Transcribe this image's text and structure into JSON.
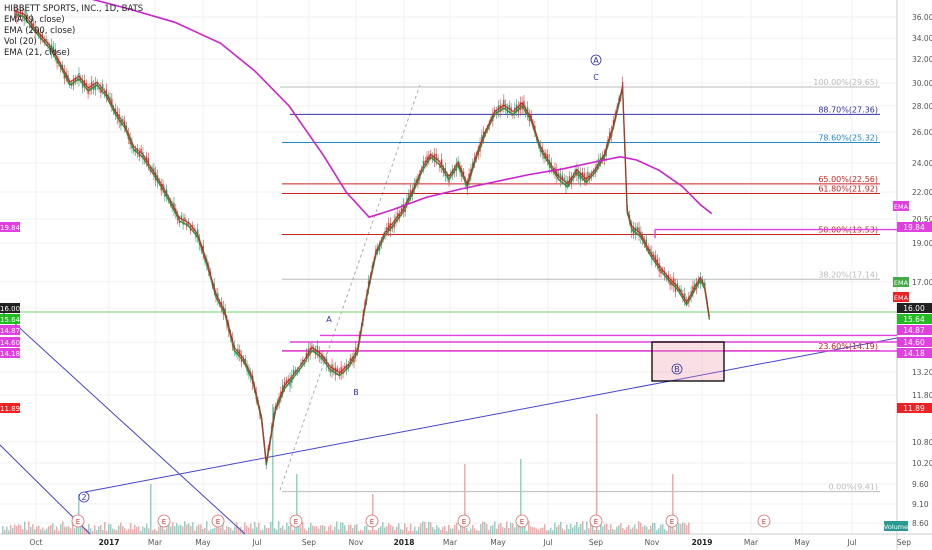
{
  "chart_data": {
    "type": "candlestick",
    "title": "HIBBETT SPORTS, INC., 1D, BATS",
    "indicators": [
      "EMA (9, close)",
      "EMA (200, close)",
      "Vol (20)",
      "EMA (21, close)"
    ],
    "y_ticks": [
      36.0,
      34.0,
      32.0,
      30.0,
      28.0,
      26.0,
      24.0,
      22.0,
      20.5,
      19.0,
      17.0,
      16.0,
      14.6,
      13.2,
      11.8,
      10.8,
      10.2,
      9.6,
      9.1,
      8.6
    ],
    "y_tick_labels": [
      "36.00",
      "34.00",
      "32.00",
      "30.00",
      "28.00",
      "26.00",
      "24.00",
      "22.00",
      "20.50",
      "19.00",
      "17.00",
      "16.00",
      "14.60",
      "13.20",
      "11.80",
      "10.80",
      "10.20",
      "9.60",
      "9.10",
      "8.60"
    ],
    "x_tick_labels": [
      "Oct",
      "2017",
      "Mar",
      "May",
      "Jul",
      "Sep",
      "Nov",
      "2018",
      "Mar",
      "May",
      "Jul",
      "Sep",
      "Nov",
      "2019",
      "Mar",
      "May",
      "Jul",
      "Sep"
    ],
    "price_badges": [
      {
        "label": "19.84",
        "price": 19.84,
        "color": "#e040e0"
      },
      {
        "label": "16.00",
        "price": 16.0,
        "color": "#222222"
      },
      {
        "label": "15.64",
        "price": 15.64,
        "color": "#22bb22"
      },
      {
        "label": "14.87",
        "price": 14.87,
        "color": "#e040e0"
      },
      {
        "label": "14.60",
        "price": 14.6,
        "color": "#e040e0"
      },
      {
        "label": "14.18",
        "price": 14.18,
        "color": "#e040e0"
      },
      {
        "label": "11.89",
        "price": 11.89,
        "color": "#ee2222"
      }
    ],
    "ema_badges": [
      {
        "label": "EMA",
        "price": 20.65,
        "color": "#e040e0"
      },
      {
        "label": "EMA",
        "price": 16.85,
        "color": "#44aa44"
      },
      {
        "label": "EMA",
        "price": 16.45,
        "color": "#ee2222"
      }
    ],
    "fib_levels": [
      {
        "label": "100.00%(29.65)",
        "price": 29.65,
        "color": "#bbbbbb"
      },
      {
        "label": "88.70%(27.36)",
        "price": 27.36,
        "color": "#3333aa"
      },
      {
        "label": "78.60%(25.32)",
        "price": 25.32,
        "color": "#2288cc"
      },
      {
        "label": "65.00%(22.56)",
        "price": 22.56,
        "color": "#cc2222"
      },
      {
        "label": "61.80%(21.92)",
        "price": 21.92,
        "color": "#cc2222"
      },
      {
        "label": "50.00%(19.53)",
        "price": 19.53,
        "color": "#cc2222"
      },
      {
        "label": "38.20%(17.14)",
        "price": 17.14,
        "color": "#bbbbbb"
      },
      {
        "label": "23.60%(14.19)",
        "price": 14.19,
        "color": "#cc2222"
      },
      {
        "label": "0.00%(9.41)",
        "price": 9.41,
        "color": "#bbbbbb"
      }
    ],
    "wave_labels": [
      "A",
      "B",
      "C",
      "A",
      "2",
      "B"
    ],
    "earnings_marker": "E",
    "volume_label": "Volume",
    "price_path": [
      [
        0.0,
        36.5
      ],
      [
        0.04,
        36.2
      ],
      [
        0.08,
        35.0
      ],
      [
        0.12,
        34.0
      ],
      [
        0.16,
        33.0
      ],
      [
        0.2,
        31.5
      ],
      [
        0.24,
        30.0
      ],
      [
        0.28,
        30.5
      ],
      [
        0.32,
        29.5
      ],
      [
        0.36,
        30.0
      ],
      [
        0.4,
        29.0
      ],
      [
        0.44,
        27.5
      ],
      [
        0.48,
        26.5
      ],
      [
        0.52,
        25.0
      ],
      [
        0.56,
        24.5
      ],
      [
        0.6,
        23.5
      ],
      [
        0.64,
        22.5
      ],
      [
        0.68,
        21.5
      ],
      [
        0.72,
        20.5
      ],
      [
        0.76,
        20.2
      ],
      [
        0.8,
        19.5
      ],
      [
        0.84,
        18.0
      ],
      [
        0.88,
        16.5
      ],
      [
        0.92,
        15.8
      ],
      [
        0.96,
        14.3
      ],
      [
        1.0,
        13.8
      ],
      [
        1.04,
        12.8
      ],
      [
        1.08,
        11.3
      ],
      [
        1.1,
        10.2
      ],
      [
        1.14,
        11.5
      ],
      [
        1.18,
        12.3
      ],
      [
        1.22,
        13.0
      ],
      [
        1.26,
        13.6
      ],
      [
        1.3,
        14.3
      ],
      [
        1.34,
        14.0
      ],
      [
        1.38,
        13.4
      ],
      [
        1.42,
        13.1
      ],
      [
        1.46,
        13.5
      ],
      [
        1.5,
        14.2
      ],
      [
        1.54,
        16.5
      ],
      [
        1.58,
        18.5
      ],
      [
        1.62,
        19.6
      ],
      [
        1.66,
        20.3
      ],
      [
        1.7,
        21.0
      ],
      [
        1.74,
        22.0
      ],
      [
        1.78,
        23.5
      ],
      [
        1.82,
        24.5
      ],
      [
        1.86,
        24.0
      ],
      [
        1.9,
        23.0
      ],
      [
        1.94,
        24.0
      ],
      [
        1.98,
        22.5
      ],
      [
        2.02,
        24.5
      ],
      [
        2.06,
        26.0
      ],
      [
        2.1,
        27.5
      ],
      [
        2.14,
        28.0
      ],
      [
        2.18,
        27.5
      ],
      [
        2.22,
        28.2
      ],
      [
        2.26,
        27.0
      ],
      [
        2.3,
        25.0
      ],
      [
        2.34,
        24.0
      ],
      [
        2.38,
        23.0
      ],
      [
        2.42,
        22.5
      ],
      [
        2.46,
        23.5
      ],
      [
        2.5,
        22.8
      ],
      [
        2.54,
        23.5
      ],
      [
        2.58,
        24.5
      ],
      [
        2.62,
        26.5
      ],
      [
        2.66,
        29.7
      ],
      [
        2.68,
        21.0
      ],
      [
        2.7,
        20.0
      ],
      [
        2.74,
        19.5
      ],
      [
        2.78,
        18.5
      ],
      [
        2.82,
        17.8
      ],
      [
        2.86,
        17.2
      ],
      [
        2.9,
        16.8
      ],
      [
        2.94,
        16.2
      ],
      [
        2.96,
        16.5
      ],
      [
        3.0,
        17.2
      ],
      [
        3.02,
        16.8
      ],
      [
        3.04,
        15.6
      ]
    ],
    "ema200_path": [
      [
        0.3,
        38.0
      ],
      [
        0.5,
        36.8
      ],
      [
        0.7,
        35.5
      ],
      [
        0.9,
        33.5
      ],
      [
        1.05,
        31.0
      ],
      [
        1.2,
        28.0
      ],
      [
        1.35,
        24.5
      ],
      [
        1.45,
        22.0
      ],
      [
        1.55,
        20.6
      ],
      [
        1.65,
        21.0
      ],
      [
        1.8,
        21.7
      ],
      [
        1.95,
        22.2
      ],
      [
        2.1,
        22.7
      ],
      [
        2.25,
        23.2
      ],
      [
        2.4,
        23.6
      ],
      [
        2.55,
        24.1
      ],
      [
        2.65,
        24.4
      ],
      [
        2.72,
        24.2
      ],
      [
        2.82,
        23.5
      ],
      [
        2.92,
        22.4
      ],
      [
        3.0,
        21.3
      ],
      [
        3.05,
        20.8
      ]
    ],
    "x_domain": [
      0,
      3.8
    ],
    "y_domain": [
      8.3,
      37.2
    ]
  }
}
